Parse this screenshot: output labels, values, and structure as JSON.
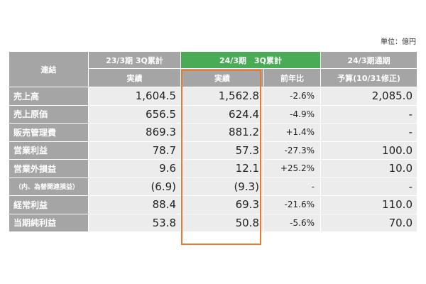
{
  "unit": "単位：億円",
  "colors": {
    "header_gray": "#a5a5a5",
    "header_green": "#4aab57",
    "cell_bg": "#ececec",
    "highlight": "#e77a2b"
  },
  "header": {
    "consolidated": "連結",
    "col_prev": "23/3期 3Q累計",
    "col_curr": "24/3期　3Q累計",
    "col_full": "24/3期通期",
    "actual_prev": "実績",
    "actual_curr": "実績",
    "yoy": "前年比",
    "budget": "予算(10/31修正)"
  },
  "rows": [
    {
      "label": "売上高",
      "prev": "1,604.5",
      "curr": "1,562.8",
      "yoy": "-2.6%",
      "budget": "2,085.0"
    },
    {
      "label": "売上原価",
      "prev": "656.5",
      "curr": "624.4",
      "yoy": "-4.9%",
      "budget": "-"
    },
    {
      "label": "販売管理費",
      "prev": "869.3",
      "curr": "881.2",
      "yoy": "+1.4%",
      "budget": "-"
    },
    {
      "label": "営業利益",
      "prev": "78.7",
      "curr": "57.3",
      "yoy": "-27.3%",
      "budget": "100.0"
    },
    {
      "label": "営業外損益",
      "prev": "9.6",
      "curr": "12.1",
      "yoy": "+25.2%",
      "budget": "10.0"
    },
    {
      "label": "（内、為替関連損益）",
      "prev": "(6.9)",
      "curr": "(9.3)",
      "yoy": "-",
      "budget": "-"
    },
    {
      "label": "経常利益",
      "prev": "88.4",
      "curr": "69.3",
      "yoy": "-21.6%",
      "budget": "110.0"
    },
    {
      "label": "当期純利益",
      "prev": "53.8",
      "curr": "50.8",
      "yoy": "-5.6%",
      "budget": "70.0"
    }
  ]
}
